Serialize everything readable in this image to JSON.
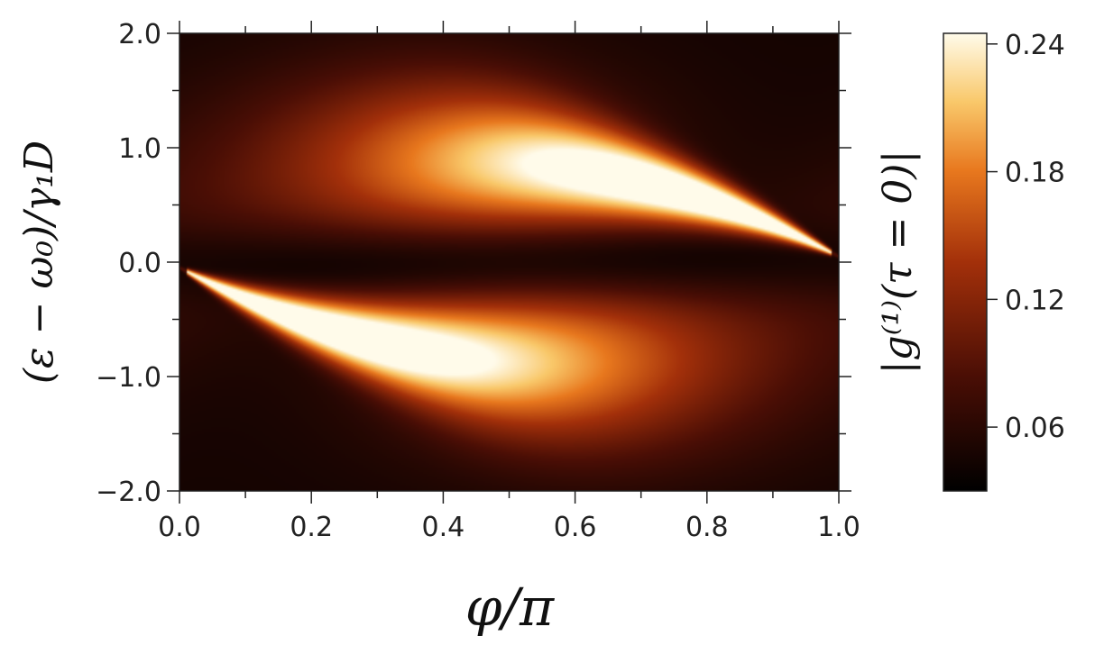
{
  "chart_data": {
    "type": "heatmap",
    "xlabel": "φ/π",
    "ylabel": "(ε − ω₀)/γ₁D",
    "colorbar_label": "|g⁽¹⁾(τ = 0)|",
    "xlim": [
      0.0,
      1.0
    ],
    "ylim": [
      -2.0,
      2.0
    ],
    "x_ticks": [
      0.0,
      0.2,
      0.4,
      0.6,
      0.8,
      1.0
    ],
    "x_tick_labels": [
      "0.0",
      "0.2",
      "0.4",
      "0.6",
      "0.8",
      "1.0"
    ],
    "y_ticks": [
      2.0,
      1.0,
      0.0,
      -1.0,
      -2.0
    ],
    "y_tick_labels": [
      "2.0",
      "1.0",
      "0.0",
      "−1.0",
      "−2.0"
    ],
    "colorbar_range": [
      0.03,
      0.245
    ],
    "colorbar_ticks": [
      0.24,
      0.18,
      0.12,
      0.06
    ],
    "colorbar_tick_labels": [
      "0.24",
      "0.18",
      "0.12",
      "0.06"
    ],
    "colormap": "afmhot",
    "features": [
      {
        "name": "lower-lobe",
        "peak": [
          0.22,
          -0.65
        ],
        "peak_value": 0.24,
        "tip": [
          0.02,
          -0.03
        ],
        "tail_end": [
          0.45,
          -1.1
        ]
      },
      {
        "name": "upper-lobe",
        "peak": [
          0.8,
          0.65
        ],
        "peak_value": 0.24,
        "tip": [
          0.98,
          0.07
        ],
        "tail_end": [
          0.55,
          1.1
        ]
      }
    ]
  }
}
